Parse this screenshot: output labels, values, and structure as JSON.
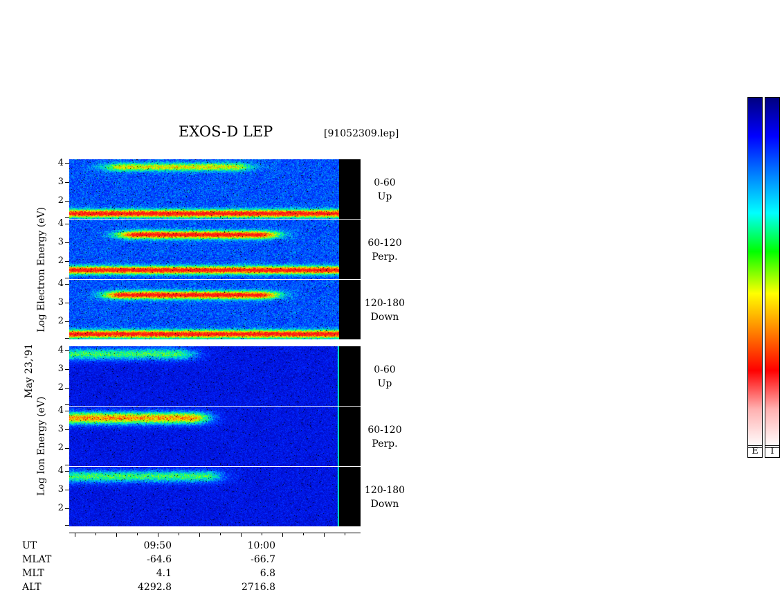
{
  "header": {
    "title": "EXOS-D LEP",
    "filename": "[91052309.lep]"
  },
  "date_label": "May 23,'91",
  "axis_labels": {
    "electron": "Log  Electron  Energy (eV)",
    "ion": "Log   Ion  Energy (eV)"
  },
  "y_ticks": [
    "4",
    "3",
    "2"
  ],
  "panels": [
    {
      "species": "electron",
      "angle": "0-60",
      "direction": "Up"
    },
    {
      "species": "electron",
      "angle": "60-120",
      "direction": "Perp."
    },
    {
      "species": "electron",
      "angle": "120-180",
      "direction": "Down"
    },
    {
      "species": "ion",
      "angle": "0-60",
      "direction": "Up"
    },
    {
      "species": "ion",
      "angle": "60-120",
      "direction": "Perp."
    },
    {
      "species": "ion",
      "angle": "120-180",
      "direction": "Down"
    }
  ],
  "ephemeris": {
    "labels": [
      "UT",
      "MLAT",
      "MLT",
      "ALT"
    ],
    "columns": [
      {
        "UT": "09:50",
        "MLAT": "-64.6",
        "MLT": "4.1",
        "ALT": "4292.8"
      },
      {
        "UT": "10:00",
        "MLAT": "-66.7",
        "MLT": "6.8",
        "ALT": "2716.8"
      }
    ]
  },
  "colorbars": [
    {
      "label": "E"
    },
    {
      "label": "I"
    }
  ],
  "colors": {
    "scale": [
      "#ffffff",
      "#ffb0b0",
      "#ff0000",
      "#ff8000",
      "#ffff00",
      "#00ff00",
      "#00ffff",
      "#0080ff",
      "#0000ff",
      "#000080"
    ]
  },
  "chart_data": {
    "type": "heatmap",
    "title": "EXOS-D LEP",
    "x_ticks": [
      "09:50",
      "10:00"
    ],
    "y_range_log_eV": [
      1,
      4.2
    ],
    "y_ticks": [
      4,
      3,
      2
    ],
    "series": [
      {
        "name": "electron 0-60 Up",
        "bands": [
          {
            "energy_log": 1.3,
            "level": "high",
            "t": [
              0,
              1
            ]
          },
          {
            "energy_log": 3.8,
            "level": "medium",
            "t": [
              0.2,
              0.6
            ]
          }
        ]
      },
      {
        "name": "electron 60-120 Perp.",
        "bands": [
          {
            "energy_log": 1.5,
            "level": "high",
            "t": [
              0,
              1
            ]
          },
          {
            "energy_log": 3.4,
            "level": "high",
            "t": [
              0.25,
              0.7
            ]
          }
        ]
      },
      {
        "name": "electron 120-180 Down",
        "bands": [
          {
            "energy_log": 1.3,
            "level": "high",
            "t": [
              0,
              1
            ]
          },
          {
            "energy_log": 3.4,
            "level": "high",
            "t": [
              0.2,
              0.7
            ]
          }
        ]
      },
      {
        "name": "ion 0-60 Up",
        "bands": [
          {
            "energy_log": 3.8,
            "level": "medium",
            "t": [
              0,
              0.4
            ]
          }
        ]
      },
      {
        "name": "ion 60-120 Perp.",
        "bands": [
          {
            "energy_log": 3.6,
            "level": "high",
            "t": [
              0,
              0.45
            ]
          }
        ]
      },
      {
        "name": "ion 120-180 Down",
        "bands": [
          {
            "energy_log": 3.7,
            "level": "medium",
            "t": [
              0,
              0.5
            ]
          }
        ]
      }
    ]
  }
}
